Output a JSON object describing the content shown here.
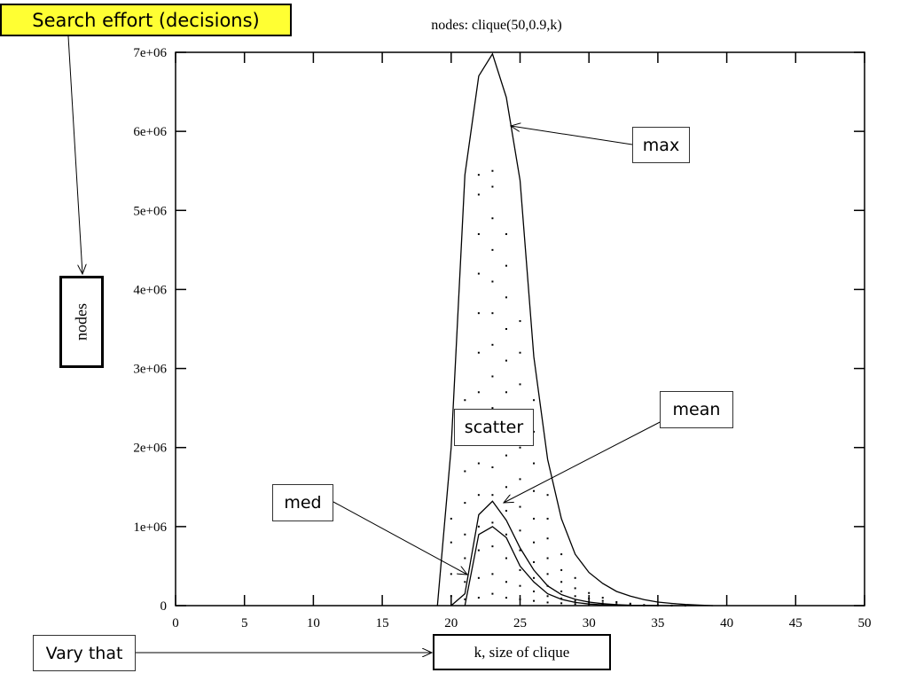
{
  "header": {
    "callout": "Search effort (decisions)"
  },
  "annotations": {
    "max": "max",
    "mean": "mean",
    "scatter": "scatter",
    "med": "med",
    "vary": "Vary that"
  },
  "colors": {
    "callout_bg": "#ffff33",
    "line": "#000000"
  },
  "chart_data": {
    "type": "line",
    "title": "nodes: clique(50,0.9,k)",
    "xlabel": "k, size of clique",
    "ylabel": "nodes",
    "xlim": [
      0,
      50
    ],
    "ylim": [
      0,
      7000000
    ],
    "x_ticks": [
      0,
      5,
      10,
      15,
      20,
      25,
      30,
      35,
      40,
      45,
      50
    ],
    "y_ticks": [
      0,
      1000000,
      2000000,
      3000000,
      4000000,
      5000000,
      6000000,
      7000000
    ],
    "y_tick_labels": [
      "0",
      "1e+06",
      "2e+06",
      "3e+06",
      "4e+06",
      "5e+06",
      "6e+06",
      "7e+06"
    ],
    "series": [
      {
        "name": "max",
        "x": [
          19,
          20,
          21,
          22,
          23,
          24,
          25,
          26,
          27,
          28,
          29,
          30,
          31,
          32,
          33,
          34,
          35,
          36,
          37,
          38,
          39
        ],
        "y": [
          0,
          2000000,
          5450000,
          6700000,
          6980000,
          6430000,
          5380000,
          3150000,
          1850000,
          1100000,
          650000,
          420000,
          280000,
          180000,
          120000,
          75000,
          45000,
          28000,
          15000,
          7000,
          0
        ]
      },
      {
        "name": "mean",
        "x": [
          20,
          21,
          22,
          23,
          24,
          25,
          26,
          27,
          28,
          29,
          30,
          31,
          32,
          33,
          34,
          35,
          36,
          37
        ],
        "y": [
          0,
          150000,
          1150000,
          1320000,
          1080000,
          730000,
          450000,
          250000,
          140000,
          80000,
          45000,
          25000,
          12000,
          6000,
          3000,
          1500,
          500,
          0
        ]
      },
      {
        "name": "med",
        "x": [
          21,
          22,
          23,
          24,
          25,
          26,
          27,
          28,
          29,
          30,
          31,
          32,
          33,
          34,
          35
        ],
        "y": [
          0,
          900000,
          1000000,
          860000,
          500000,
          300000,
          150000,
          80000,
          40000,
          20000,
          10000,
          5000,
          2000,
          1000,
          0
        ]
      }
    ],
    "scatter": {
      "name": "scatter",
      "x": [
        20,
        20,
        20,
        20,
        21,
        21,
        21,
        21,
        21,
        21,
        21,
        21,
        22,
        22,
        22,
        22,
        22,
        22,
        22,
        22,
        22,
        22,
        22,
        22,
        22,
        22,
        23,
        23,
        23,
        23,
        23,
        23,
        23,
        23,
        23,
        23,
        23,
        23,
        23,
        23,
        23,
        23,
        24,
        24,
        24,
        24,
        24,
        24,
        24,
        24,
        24,
        24,
        24,
        24,
        24,
        24,
        25,
        25,
        25,
        25,
        25,
        25,
        25,
        25,
        25,
        25,
        25,
        25,
        26,
        26,
        26,
        26,
        26,
        26,
        26,
        26,
        26,
        26,
        27,
        27,
        27,
        27,
        27,
        27,
        27,
        27,
        28,
        28,
        28,
        28,
        28,
        28,
        29,
        29,
        29,
        29,
        29,
        30,
        30,
        30,
        30,
        31,
        31,
        31,
        31,
        32,
        32,
        32,
        33,
        33,
        33,
        34,
        34,
        35,
        35,
        36,
        37
      ],
      "y": [
        120000,
        400000,
        800000,
        1100000,
        80000,
        300000,
        600000,
        900000,
        1300000,
        1700000,
        2100000,
        2600000,
        100000,
        350000,
        700000,
        1000000,
        1400000,
        1800000,
        2200000,
        2700000,
        3200000,
        3700000,
        4200000,
        4700000,
        5200000,
        5450000,
        150000,
        400000,
        750000,
        1050000,
        1400000,
        1750000,
        2100000,
        2500000,
        2900000,
        3300000,
        3700000,
        4100000,
        4500000,
        4900000,
        5300000,
        5500000,
        100000,
        300000,
        600000,
        900000,
        1200000,
        1500000,
        1900000,
        2300000,
        2700000,
        3100000,
        3500000,
        3900000,
        4300000,
        4700000,
        80000,
        250000,
        450000,
        700000,
        950000,
        1250000,
        1600000,
        2000000,
        2400000,
        2800000,
        3200000,
        3600000,
        60000,
        180000,
        350000,
        550000,
        800000,
        1100000,
        1450000,
        1800000,
        2200000,
        2600000,
        40000,
        120000,
        250000,
        400000,
        600000,
        850000,
        1100000,
        1400000,
        30000,
        90000,
        180000,
        300000,
        450000,
        650000,
        20000,
        60000,
        120000,
        220000,
        350000,
        15000,
        45000,
        90000,
        160000,
        10000,
        30000,
        60000,
        100000,
        8000,
        20000,
        45000,
        5000,
        12000,
        25000,
        3000,
        8000,
        2000,
        5000,
        1000,
        500
      ]
    }
  }
}
